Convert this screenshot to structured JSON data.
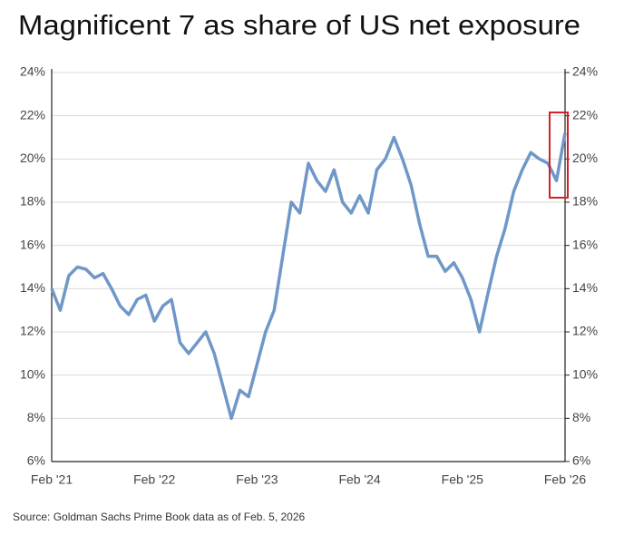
{
  "chart_data": {
    "type": "line",
    "title": "Magnificent 7 as share of US net exposure",
    "source": "Source: Goldman Sachs Prime Book data as of Feb. 5, 2026",
    "categories": [
      "Feb '21",
      null,
      null,
      null,
      null,
      null,
      null,
      null,
      null,
      null,
      null,
      null,
      "Feb '22",
      null,
      null,
      null,
      null,
      null,
      null,
      null,
      null,
      null,
      null,
      null,
      "Feb '23",
      null,
      null,
      null,
      null,
      null,
      null,
      null,
      null,
      null,
      null,
      null,
      "Feb '24",
      null,
      null,
      null,
      null,
      null,
      null,
      null,
      null,
      null,
      null,
      null,
      "Feb '25",
      null,
      null,
      null,
      null,
      null,
      null,
      null,
      null,
      null,
      null,
      null,
      "Feb '26"
    ],
    "series": [
      {
        "name": "Magnificent 7 share",
        "color": "#6f97c8",
        "values": [
          14.0,
          13.0,
          14.6,
          15.0,
          14.9,
          14.5,
          14.7,
          14.0,
          13.2,
          12.8,
          13.5,
          13.7,
          12.5,
          13.2,
          13.5,
          11.5,
          11.0,
          11.5,
          12.0,
          11.0,
          9.5,
          8.0,
          9.3,
          9.0,
          10.5,
          12.0,
          13.0,
          15.5,
          18.0,
          17.5,
          19.8,
          19.0,
          18.5,
          19.5,
          18.0,
          17.5,
          18.3,
          17.5,
          19.5,
          20.0,
          21.0,
          20.0,
          18.8,
          17.0,
          15.5,
          15.5,
          14.8,
          15.2,
          14.5,
          13.5,
          12.0,
          13.8,
          15.5,
          16.8,
          18.5,
          19.5,
          20.3,
          20.0,
          19.8,
          19.0,
          21.2
        ]
      }
    ],
    "ylim": [
      6,
      24
    ],
    "yticks": [
      {
        "value": 6,
        "label": "6%"
      },
      {
        "value": 8,
        "label": "8%"
      },
      {
        "value": 10,
        "label": "10%"
      },
      {
        "value": 12,
        "label": "12%"
      },
      {
        "value": 14,
        "label": "14%"
      },
      {
        "value": 16,
        "label": "16%"
      },
      {
        "value": 18,
        "label": "18%"
      },
      {
        "value": 20,
        "label": "20%"
      },
      {
        "value": 22,
        "label": "22%"
      },
      {
        "value": 24,
        "label": "24%"
      }
    ],
    "y2lim": [
      6,
      24
    ],
    "y2ticks": [
      {
        "value": 6,
        "label": "6%"
      },
      {
        "value": 8,
        "label": "8%"
      },
      {
        "value": 10,
        "label": "10%"
      },
      {
        "value": 12,
        "label": "12%"
      },
      {
        "value": 14,
        "label": "14%"
      },
      {
        "value": 16,
        "label": "16%"
      },
      {
        "value": 18,
        "label": "18%"
      },
      {
        "value": 20,
        "label": "20%"
      },
      {
        "value": 22,
        "label": "22%"
      },
      {
        "value": 24,
        "label": "24%"
      }
    ],
    "grid": true
  }
}
